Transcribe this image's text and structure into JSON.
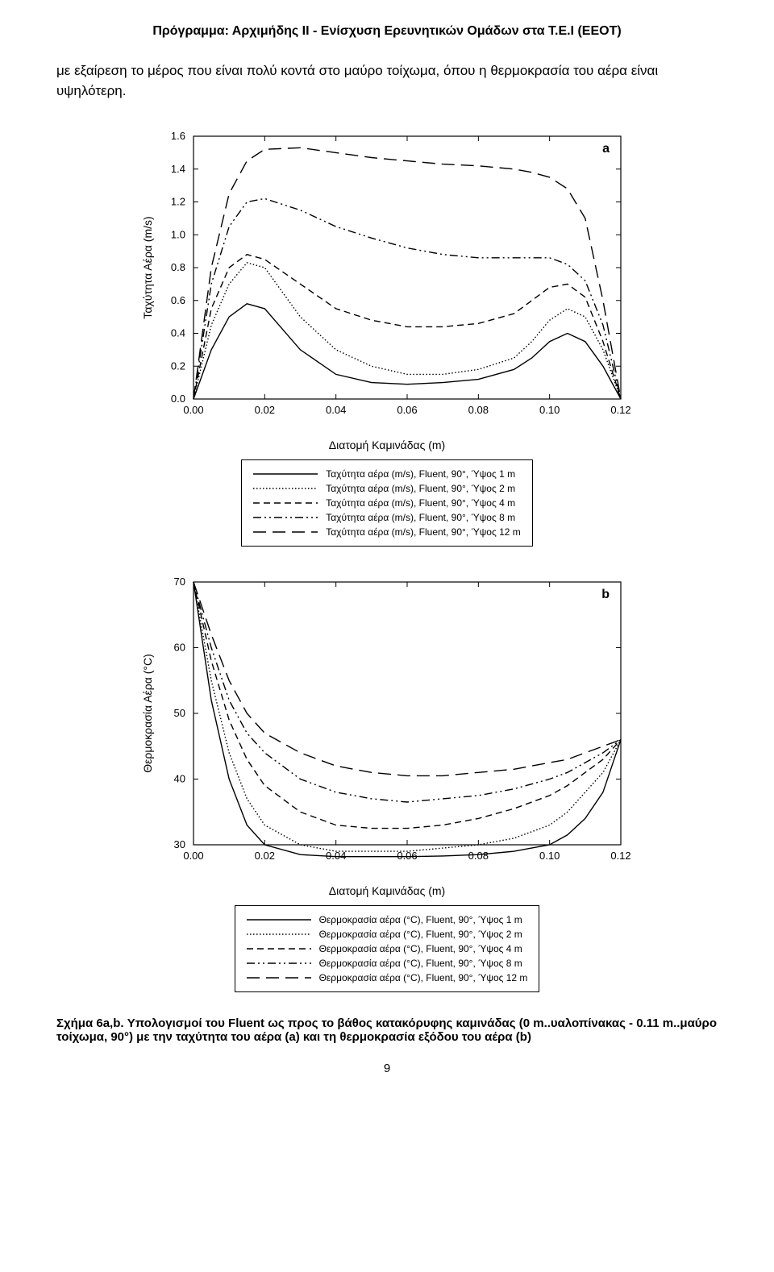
{
  "header": "Πρόγραμμα: Αρχιμήδης ΙΙ  -  Ενίσχυση Ερευνητικών Ομάδων στα Τ.Ε.Ι (ΕΕΟΤ)",
  "body_text": "με εξαίρεση το μέρος που είναι πολύ κοντά στο μαύρο τοίχωμα, όπου η θερμοκρασία του αέρα είναι υψηλότερη.",
  "caption": "Σχήμα 6a,b. Υπολογισμοί του Fluent ως προς το βάθος κατακόρυφης καμινάδας (0 m..υαλοπίνακας - 0.11 m..μαύρο τοίχωμα, 90°) με την ταχύτητα του αέρα (a) και τη θερμοκρασία εξόδου του αέρα (b)",
  "pagenum": "9",
  "chartA": {
    "type": "line",
    "panel_label": "a",
    "xlabel": "Διατομή Καμινάδας (m)",
    "ylabel": "Ταχύτητα Αέρα (m/s)",
    "xlim": [
      0.0,
      0.12
    ],
    "ylim": [
      0.0,
      1.6
    ],
    "xticks": [
      0.0,
      0.02,
      0.04,
      0.06,
      0.08,
      0.1,
      0.12
    ],
    "yticks": [
      0.0,
      0.2,
      0.4,
      0.6,
      0.8,
      1.0,
      1.2,
      1.4,
      1.6
    ],
    "xtick_labels": [
      "0.00",
      "0.02",
      "0.04",
      "0.06",
      "0.08",
      "0.10",
      "0.12"
    ],
    "ytick_labels": [
      "0.0",
      "0.2",
      "0.4",
      "0.6",
      "0.8",
      "1.0",
      "1.2",
      "1.4",
      "1.6"
    ],
    "background_color": "#ffffff",
    "axis_color": "#000000",
    "line_color": "#000000",
    "line_width": 1.4,
    "label_fontsize": 14,
    "tick_fontsize": 13,
    "series": [
      {
        "name": "Ταχύτητα αέρα (m/s), Fluent, 90°, Ύψος 1 m",
        "dash": "solid",
        "x": [
          0.0,
          0.005,
          0.01,
          0.015,
          0.02,
          0.03,
          0.04,
          0.05,
          0.06,
          0.07,
          0.08,
          0.09,
          0.095,
          0.1,
          0.105,
          0.11,
          0.115,
          0.12
        ],
        "y": [
          0.0,
          0.3,
          0.5,
          0.58,
          0.55,
          0.3,
          0.15,
          0.1,
          0.09,
          0.1,
          0.12,
          0.18,
          0.25,
          0.35,
          0.4,
          0.35,
          0.2,
          0.0
        ]
      },
      {
        "name": "Ταχύτητα αέρα (m/s), Fluent, 90°, Ύψος 2 m",
        "dash": "dot",
        "x": [
          0.0,
          0.005,
          0.01,
          0.015,
          0.02,
          0.03,
          0.04,
          0.05,
          0.06,
          0.07,
          0.08,
          0.09,
          0.095,
          0.1,
          0.105,
          0.11,
          0.115,
          0.12
        ],
        "y": [
          0.0,
          0.45,
          0.7,
          0.83,
          0.8,
          0.5,
          0.3,
          0.2,
          0.15,
          0.15,
          0.18,
          0.25,
          0.35,
          0.48,
          0.55,
          0.5,
          0.3,
          0.0
        ]
      },
      {
        "name": "Ταχύτητα αέρα (m/s), Fluent, 90°, Ύψος 4 m",
        "dash": "dash-short",
        "x": [
          0.0,
          0.005,
          0.01,
          0.015,
          0.02,
          0.03,
          0.04,
          0.05,
          0.06,
          0.07,
          0.08,
          0.09,
          0.095,
          0.1,
          0.105,
          0.11,
          0.115,
          0.12
        ],
        "y": [
          0.0,
          0.55,
          0.8,
          0.88,
          0.85,
          0.7,
          0.55,
          0.48,
          0.44,
          0.44,
          0.46,
          0.52,
          0.6,
          0.68,
          0.7,
          0.62,
          0.35,
          0.0
        ]
      },
      {
        "name": "Ταχύτητα αέρα (m/s), Fluent, 90°, Ύψος 8 m",
        "dash": "dashdotdot",
        "x": [
          0.0,
          0.005,
          0.01,
          0.015,
          0.02,
          0.03,
          0.04,
          0.05,
          0.06,
          0.07,
          0.08,
          0.09,
          0.095,
          0.1,
          0.105,
          0.11,
          0.115,
          0.12
        ],
        "y": [
          0.0,
          0.7,
          1.05,
          1.2,
          1.22,
          1.15,
          1.05,
          0.98,
          0.92,
          0.88,
          0.86,
          0.86,
          0.86,
          0.86,
          0.82,
          0.72,
          0.45,
          0.0
        ]
      },
      {
        "name": "Ταχύτητα αέρα (m/s), Fluent, 90°, Ύψος 12 m",
        "dash": "dash-long",
        "x": [
          0.0,
          0.005,
          0.01,
          0.015,
          0.02,
          0.03,
          0.04,
          0.05,
          0.06,
          0.07,
          0.08,
          0.09,
          0.095,
          0.1,
          0.105,
          0.11,
          0.115,
          0.12
        ],
        "y": [
          0.0,
          0.8,
          1.25,
          1.45,
          1.52,
          1.53,
          1.5,
          1.47,
          1.45,
          1.43,
          1.42,
          1.4,
          1.38,
          1.35,
          1.28,
          1.1,
          0.6,
          0.0
        ]
      }
    ]
  },
  "chartB": {
    "type": "line",
    "panel_label": "b",
    "xlabel": "Διατομή Καμινάδας (m)",
    "ylabel": "Θερμοκρασία Αέρα (°C)",
    "xlim": [
      0.0,
      0.12
    ],
    "ylim": [
      30,
      70
    ],
    "xticks": [
      0.0,
      0.02,
      0.04,
      0.06,
      0.08,
      0.1,
      0.12
    ],
    "yticks": [
      30,
      40,
      50,
      60,
      70
    ],
    "xtick_labels": [
      "0.00",
      "0.02",
      "0.04",
      "0.06",
      "0.08",
      "0.10",
      "0.12"
    ],
    "ytick_labels": [
      "30",
      "40",
      "50",
      "60",
      "70"
    ],
    "background_color": "#ffffff",
    "axis_color": "#000000",
    "line_color": "#000000",
    "line_width": 1.4,
    "label_fontsize": 14,
    "tick_fontsize": 13,
    "series": [
      {
        "name": "Θερμοκρασία αέρα (°C), Fluent, 90°, Ύψος 1 m",
        "dash": "solid",
        "x": [
          0.0,
          0.005,
          0.01,
          0.015,
          0.02,
          0.03,
          0.04,
          0.05,
          0.06,
          0.07,
          0.08,
          0.09,
          0.1,
          0.105,
          0.11,
          0.115,
          0.12
        ],
        "y": [
          70,
          52,
          40,
          33,
          30,
          28.5,
          28.2,
          28.2,
          28.2,
          28.3,
          28.5,
          29,
          30,
          31.5,
          34,
          38,
          46
        ]
      },
      {
        "name": "Θερμοκρασία αέρα (°C), Fluent, 90°, Ύψος 2 m",
        "dash": "dot",
        "x": [
          0.0,
          0.005,
          0.01,
          0.015,
          0.02,
          0.03,
          0.04,
          0.05,
          0.06,
          0.07,
          0.08,
          0.09,
          0.1,
          0.105,
          0.11,
          0.115,
          0.12
        ],
        "y": [
          70,
          55,
          44,
          37,
          33,
          30,
          29,
          29,
          29,
          29.5,
          30,
          31,
          33,
          35,
          38,
          41,
          46
        ]
      },
      {
        "name": "Θερμοκρασία αέρα (°C), Fluent, 90°, Ύψος 4 m",
        "dash": "dash-short",
        "x": [
          0.0,
          0.005,
          0.01,
          0.015,
          0.02,
          0.03,
          0.04,
          0.05,
          0.06,
          0.07,
          0.08,
          0.09,
          0.1,
          0.105,
          0.11,
          0.115,
          0.12
        ],
        "y": [
          70,
          58,
          49,
          43,
          39,
          35,
          33,
          32.5,
          32.5,
          33,
          34,
          35.5,
          37.5,
          39,
          41,
          43,
          46
        ]
      },
      {
        "name": "Θερμοκρασία αέρα (°C), Fluent, 90°, Ύψος 8 m",
        "dash": "dashdotdot",
        "x": [
          0.0,
          0.005,
          0.01,
          0.015,
          0.02,
          0.03,
          0.04,
          0.05,
          0.06,
          0.07,
          0.08,
          0.09,
          0.1,
          0.105,
          0.11,
          0.115,
          0.12
        ],
        "y": [
          70,
          60,
          52,
          47,
          44,
          40,
          38,
          37,
          36.5,
          37,
          37.5,
          38.5,
          40,
          41,
          42.5,
          44,
          46
        ]
      },
      {
        "name": "Θερμοκρασία αέρα (°C), Fluent, 90°, Ύψος 12 m",
        "dash": "dash-long",
        "x": [
          0.0,
          0.005,
          0.01,
          0.015,
          0.02,
          0.03,
          0.04,
          0.05,
          0.06,
          0.07,
          0.08,
          0.09,
          0.1,
          0.105,
          0.11,
          0.115,
          0.12
        ],
        "y": [
          70,
          62,
          55,
          50,
          47,
          44,
          42,
          41,
          40.5,
          40.5,
          41,
          41.5,
          42.5,
          43,
          44,
          45,
          46
        ]
      }
    ]
  },
  "dash_patterns": {
    "solid": "",
    "dot": "1.5 2.5",
    "dash-short": "8 5",
    "dashdotdot": "10 4 2 4 2 4",
    "dash-long": "16 8"
  }
}
